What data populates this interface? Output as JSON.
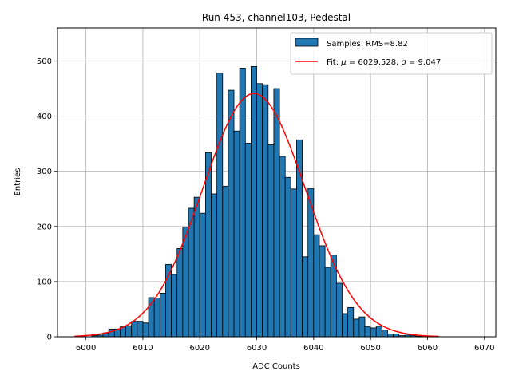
{
  "chart_data": {
    "type": "bar",
    "title": "Run 453, channel103, Pedestal",
    "xlabel": "ADC Counts",
    "ylabel": "Entries",
    "xlim": [
      5995,
      6072
    ],
    "ylim": [
      0,
      560
    ],
    "xticks": [
      6000,
      6010,
      6020,
      6030,
      6040,
      6050,
      6060,
      6070
    ],
    "yticks": [
      0,
      100,
      200,
      300,
      400,
      500
    ],
    "grid": true,
    "legend_position": "top-right",
    "bin_width": 1,
    "histogram": {
      "name": "Samples: RMS=8.82",
      "color": "#1f77b4",
      "bin_start": 6001,
      "counts": [
        2,
        3,
        7,
        14,
        14,
        18,
        20,
        28,
        28,
        25,
        71,
        70,
        79,
        131,
        113,
        160,
        199,
        233,
        253,
        224,
        334,
        259,
        478,
        273,
        447,
        373,
        487,
        351,
        490,
        459,
        457,
        348,
        450,
        327,
        289,
        268,
        357,
        145,
        269,
        185,
        165,
        126,
        148,
        97,
        42,
        53,
        32,
        36,
        18,
        16,
        19,
        12,
        5,
        5,
        2,
        3,
        2,
        1
      ]
    },
    "fit": {
      "name": "Fit: μ = 6029.528, σ = 9.047",
      "legend_prefix_1": "Fit: ",
      "mu_symbol": "μ",
      "legend_mid": " = 6029.528, ",
      "sigma_symbol": "σ",
      "legend_suffix": " = 9.047",
      "color": "#ff0000",
      "mu": 6029.528,
      "sigma": 9.047,
      "amplitude": 441,
      "x_range": [
        5998,
        6062
      ]
    }
  }
}
